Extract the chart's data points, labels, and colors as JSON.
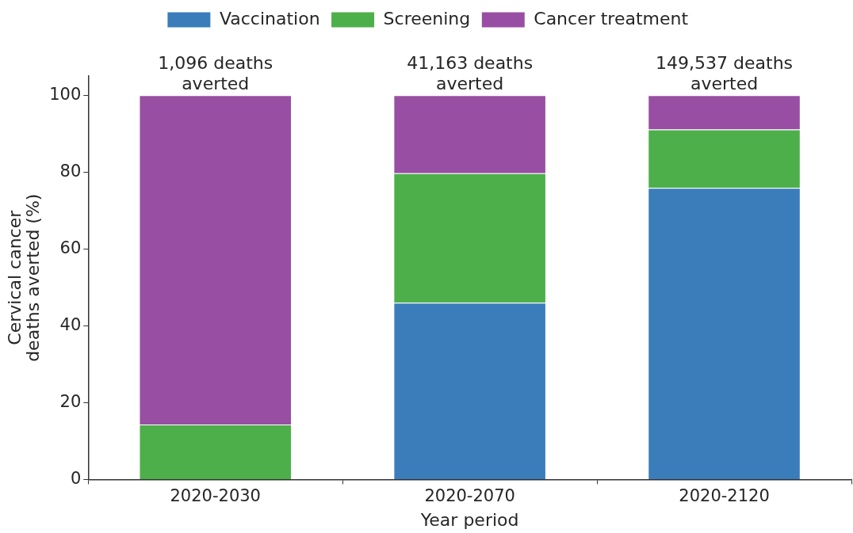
{
  "chart_data": {
    "type": "bar",
    "stacked": true,
    "xlabel": "Year period",
    "ylabel": "Cervical cancer\ndeaths averted (%)",
    "categories": [
      "2020-2030",
      "2020-2070",
      "2020-2120"
    ],
    "series": [
      {
        "name": "Vaccination",
        "color": "#3a7dba",
        "values": [
          0,
          46.0,
          75.9
        ]
      },
      {
        "name": "Screening",
        "color": "#4daf4a",
        "values": [
          14.3,
          33.7,
          15.2
        ]
      },
      {
        "name": "Cancer treatment",
        "color": "#984ea3",
        "values": [
          85.7,
          20.3,
          8.9
        ]
      }
    ],
    "annotations": [
      {
        "text": "1,096 deaths\naverted",
        "x": "2020-2030",
        "y": 100
      },
      {
        "text": "41,163 deaths\naverted",
        "x": "2020-2070",
        "y": 100
      },
      {
        "text": "149,537 deaths\naverted",
        "x": "2020-2120",
        "y": 100
      }
    ],
    "ylim": [
      0,
      105
    ],
    "yticks": [
      0,
      20,
      40,
      60,
      80,
      100
    ],
    "grid": false,
    "legend": "top"
  }
}
